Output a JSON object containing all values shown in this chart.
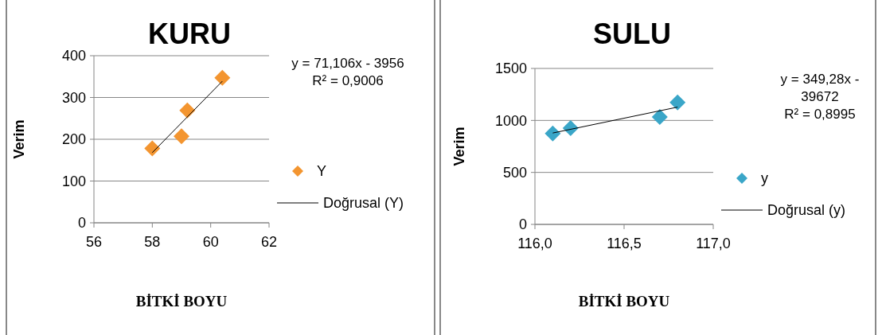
{
  "chart_data": [
    {
      "type": "scatter",
      "title": "KURU",
      "xlabel": "BİTKİ BOYU",
      "ylabel": "Verim",
      "xlim": [
        56,
        62
      ],
      "xticks": [
        56,
        58,
        60,
        62
      ],
      "ylim": [
        0,
        400
      ],
      "yticks": [
        0,
        100,
        200,
        300,
        400
      ],
      "grid": "y",
      "legend": "right",
      "annotations": [
        "y = 71,106x - 3956",
        "R² = 0,9006"
      ],
      "series": [
        {
          "name": "Y",
          "marker": "diamond",
          "color": "#f39530",
          "x": [
            58.0,
            59.0,
            59.2,
            60.4
          ],
          "values": [
            178,
            207,
            269,
            347
          ]
        },
        {
          "name": "Doğrusal (Y)",
          "type": "line",
          "color": "#000000",
          "x": [
            58.0,
            60.4
          ],
          "values": [
            168,
            339
          ]
        }
      ]
    },
    {
      "type": "scatter",
      "title": "SULU",
      "xlabel": "BİTKİ BOYU",
      "ylabel": "Verim",
      "xlim": [
        116,
        117
      ],
      "xticks": [
        {
          "value": 116,
          "label": "116,0"
        },
        {
          "value": 116.5,
          "label": "116,5"
        },
        {
          "value": 117,
          "label": "117,0"
        }
      ],
      "ylim": [
        0,
        1500
      ],
      "yticks": [
        0,
        500,
        1000,
        1500
      ],
      "grid": "y",
      "legend": "right",
      "annotations": [
        "y = 349,28x - 39672",
        "R² = 0,8995"
      ],
      "series": [
        {
          "name": "y",
          "marker": "diamond",
          "color": "#3aa6c8",
          "x": [
            116.1,
            116.2,
            116.7,
            116.8
          ],
          "values": [
            875,
            926,
            1033,
            1173
          ]
        },
        {
          "name": "Doğrusal (y)",
          "type": "line",
          "color": "#000000",
          "x": [
            116.1,
            116.8
          ],
          "values": [
            879,
            1128
          ]
        }
      ]
    }
  ]
}
